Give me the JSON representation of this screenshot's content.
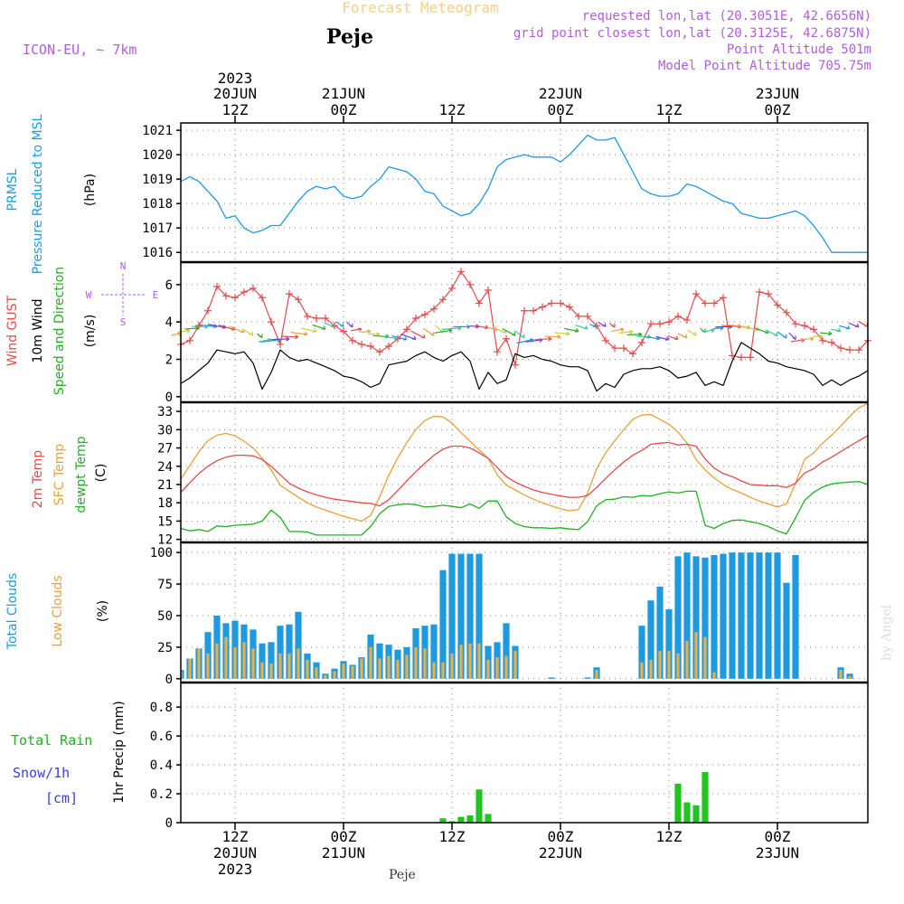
{
  "header": {
    "super_title": "Forecast Meteogram",
    "location": "Peje",
    "model": "ICON-EU, ~ 7km",
    "requested": "requested lon,lat (20.3051E, 42.6656N)",
    "grid_point": "grid point closest lon,lat (20.3125E, 42.6875N)",
    "point_alt": "Point Altitude 501m",
    "model_alt": "Model Point Altitude 705.75m",
    "footer_location": "Peje",
    "watermark": "by Angel"
  },
  "time_axis": {
    "top": [
      {
        "line1": "2023",
        "line2": "20JUN",
        "line3": "12Z",
        "h": 12
      },
      {
        "line1": "",
        "line2": "21JUN",
        "line3": "00Z",
        "h": 24
      },
      {
        "line1": "",
        "line2": "",
        "line3": "12Z",
        "h": 36
      },
      {
        "line1": "",
        "line2": "22JUN",
        "line3": "00Z",
        "h": 48
      },
      {
        "line1": "",
        "line2": "",
        "line3": "12Z",
        "h": 60
      },
      {
        "line1": "",
        "line2": "23JUN",
        "line3": "00Z",
        "h": 72
      }
    ],
    "bottom": [
      {
        "line1": "12Z",
        "line2": "20JUN",
        "line3": "2023",
        "h": 12
      },
      {
        "line1": "00Z",
        "line2": "21JUN",
        "line3": "",
        "h": 24
      },
      {
        "line1": "12Z",
        "line2": "",
        "line3": "",
        "h": 36
      },
      {
        "line1": "00Z",
        "line2": "22JUN",
        "line3": "",
        "h": 48
      },
      {
        "line1": "12Z",
        "line2": "",
        "line3": "",
        "h": 60
      },
      {
        "line1": "00Z",
        "line2": "23JUN",
        "line3": "",
        "h": 72
      }
    ],
    "x_start_hour": 6,
    "x_end_hour": 82
  },
  "chart_data": [
    {
      "type": "line",
      "name": "pressure",
      "title_lines": [
        "PRMSL",
        "Pressure Reduced to MSL"
      ],
      "ylabel": "(hPa)",
      "ylim": [
        1015.6,
        1021.3
      ],
      "yticks": [
        1016,
        1017,
        1018,
        1019,
        1020,
        1021
      ],
      "x_hours": [
        6,
        7,
        8,
        9,
        10,
        11,
        12,
        13,
        14,
        15,
        16,
        17,
        18,
        19,
        20,
        21,
        22,
        23,
        24,
        25,
        26,
        27,
        28,
        29,
        30,
        31,
        32,
        33,
        34,
        35,
        36,
        37,
        38,
        39,
        40,
        41,
        42,
        43,
        44,
        45,
        46,
        47,
        48,
        49,
        50,
        51,
        52,
        53,
        54,
        55,
        56,
        57,
        58,
        59,
        60,
        61,
        62,
        63,
        64,
        65,
        66,
        67,
        68,
        69,
        70,
        71,
        72,
        73,
        74,
        75,
        76,
        77,
        78,
        79,
        80,
        81,
        82
      ],
      "values": [
        1018.9,
        1019.1,
        1018.9,
        1018.5,
        1018.1,
        1017.4,
        1017.5,
        1017.0,
        1016.8,
        1016.9,
        1017.1,
        1017.1,
        1017.6,
        1018.1,
        1018.5,
        1018.7,
        1018.6,
        1018.7,
        1018.3,
        1018.2,
        1018.3,
        1018.7,
        1019.0,
        1019.5,
        1019.4,
        1019.3,
        1019.0,
        1018.5,
        1018.4,
        1017.9,
        1017.7,
        1017.5,
        1017.6,
        1018.0,
        1018.6,
        1019.5,
        1019.8,
        1019.9,
        1020.0,
        1019.9,
        1019.9,
        1019.9,
        1019.7,
        1020.0,
        1020.4,
        1020.8,
        1020.6,
        1020.6,
        1020.7,
        1020.0,
        1019.3,
        1018.6,
        1018.4,
        1018.3,
        1018.3,
        1018.4,
        1018.8,
        1018.7,
        1018.5,
        1018.3,
        1018.1,
        1018.0,
        1017.6,
        1017.5,
        1017.4,
        1017.4,
        1017.5,
        1017.6,
        1017.7,
        1017.5,
        1017.1,
        1016.6,
        1016.0,
        1016.0,
        1016.0,
        1016.0,
        1016.0
      ]
    },
    {
      "type": "line",
      "name": "wind",
      "title_lines": [
        "Wind GUST",
        "10m Wind",
        "Speed and Direction"
      ],
      "ylabel": "(m/s)",
      "compass": [
        "N",
        "W",
        "E",
        "S"
      ],
      "ylim": [
        -0.3,
        7.2
      ],
      "yticks": [
        0,
        2,
        4,
        6
      ],
      "x_hours": [
        6,
        7,
        8,
        9,
        10,
        11,
        12,
        13,
        14,
        15,
        16,
        17,
        18,
        19,
        20,
        21,
        22,
        23,
        24,
        25,
        26,
        27,
        28,
        29,
        30,
        31,
        32,
        33,
        34,
        35,
        36,
        37,
        38,
        39,
        40,
        41,
        42,
        43,
        44,
        45,
        46,
        47,
        48,
        49,
        50,
        51,
        52,
        53,
        54,
        55,
        56,
        57,
        58,
        59,
        60,
        61,
        62,
        63,
        64,
        65,
        66,
        67,
        68,
        69,
        70,
        71,
        72,
        73,
        74,
        75,
        76,
        77,
        78,
        79,
        80,
        81,
        82
      ],
      "gust": [
        2.8,
        3.0,
        3.8,
        4.6,
        5.9,
        5.4,
        5.3,
        5.6,
        5.8,
        5.3,
        4.0,
        2.8,
        5.5,
        5.2,
        4.3,
        4.2,
        4.2,
        3.8,
        3.5,
        3.0,
        2.8,
        2.7,
        2.4,
        2.7,
        3.1,
        3.6,
        4.2,
        4.4,
        4.7,
        5.2,
        5.8,
        6.7,
        6.0,
        5.0,
        5.7,
        2.4,
        3.1,
        1.7,
        4.6,
        4.6,
        4.8,
        5.0,
        5.0,
        4.8,
        4.3,
        4.3,
        3.8,
        3.0,
        2.6,
        2.6,
        2.3,
        2.9,
        3.9,
        3.9,
        4.0,
        4.3,
        4.1,
        5.5,
        5.0,
        5.0,
        5.3,
        2.2,
        2.1,
        2.1,
        5.6,
        5.5,
        4.9,
        4.5,
        3.9,
        3.8,
        3.6,
        3.0,
        2.9,
        2.6,
        2.5,
        2.5,
        3.0
      ],
      "speed": [
        0.7,
        1.0,
        1.4,
        1.8,
        2.5,
        2.4,
        2.3,
        2.4,
        1.8,
        0.4,
        1.3,
        2.5,
        2.1,
        1.9,
        2.0,
        1.8,
        1.6,
        1.4,
        1.1,
        1.0,
        0.8,
        0.5,
        0.7,
        1.7,
        1.8,
        1.9,
        2.2,
        2.4,
        2.1,
        1.9,
        2.2,
        2.4,
        1.9,
        0.4,
        1.3,
        0.7,
        0.9,
        2.3,
        2.1,
        2.2,
        2.0,
        1.9,
        1.7,
        1.6,
        1.6,
        1.4,
        0.3,
        0.7,
        0.5,
        1.2,
        1.4,
        1.5,
        1.5,
        1.6,
        1.4,
        1.0,
        1.1,
        1.3,
        0.6,
        0.8,
        0.6,
        1.9,
        2.9,
        2.6,
        2.3,
        1.9,
        1.8,
        1.6,
        1.5,
        1.4,
        1.2,
        0.6,
        0.9,
        0.6,
        0.9,
        1.1,
        1.4
      ]
    },
    {
      "type": "line",
      "name": "temperature",
      "title_lines": [
        "2m Temp",
        "SFC Temp",
        "dewpt Temp"
      ],
      "ylabel": "(C)",
      "ylim": [
        11.5,
        34.5
      ],
      "yticks": [
        12,
        15,
        18,
        21,
        24,
        27,
        30,
        33
      ],
      "x_hours": [
        6,
        7,
        8,
        9,
        10,
        11,
        12,
        13,
        14,
        15,
        16,
        17,
        18,
        19,
        20,
        21,
        22,
        23,
        24,
        25,
        26,
        27,
        28,
        29,
        30,
        31,
        32,
        33,
        34,
        35,
        36,
        37,
        38,
        39,
        40,
        41,
        42,
        43,
        44,
        45,
        46,
        47,
        48,
        49,
        50,
        51,
        52,
        53,
        54,
        55,
        56,
        57,
        58,
        59,
        60,
        61,
        62,
        63,
        64,
        65,
        66,
        67,
        68,
        69,
        70,
        71,
        72,
        73,
        74,
        75,
        76,
        77,
        78,
        79,
        80,
        81,
        82
      ],
      "t2m": [
        19.7,
        21.3,
        22.8,
        24.0,
        24.9,
        25.5,
        25.8,
        25.8,
        25.7,
        25.1,
        24.0,
        22.6,
        21.2,
        20.4,
        19.8,
        19.3,
        18.9,
        18.6,
        18.4,
        18.2,
        18.0,
        17.9,
        17.5,
        18.5,
        20.0,
        21.6,
        23.1,
        24.5,
        25.8,
        26.8,
        27.3,
        27.3,
        27.0,
        26.2,
        25.3,
        23.8,
        22.3,
        21.4,
        20.7,
        20.1,
        19.7,
        19.4,
        19.1,
        18.9,
        18.9,
        19.2,
        20.5,
        22.0,
        23.4,
        24.7,
        25.8,
        26.6,
        27.6,
        27.8,
        27.9,
        27.5,
        27.6,
        27.3,
        25.2,
        23.7,
        22.8,
        22.3,
        21.6,
        21.0,
        20.9,
        20.8,
        20.8,
        20.5,
        21.2,
        22.9,
        23.6,
        24.7,
        25.5,
        26.4,
        27.3,
        28.2,
        29.0
      ],
      "sfc": [
        21.9,
        24.1,
        26.4,
        28.2,
        29.1,
        29.4,
        29.0,
        28.1,
        27.0,
        25.3,
        23.4,
        20.9,
        19.9,
        18.9,
        18.0,
        17.3,
        16.8,
        16.3,
        15.8,
        15.4,
        15.0,
        15.9,
        19.0,
        22.5,
        25.4,
        27.9,
        30.0,
        31.5,
        32.2,
        32.1,
        31.1,
        29.5,
        28.1,
        26.7,
        25.3,
        22.6,
        20.9,
        20.1,
        19.3,
        18.6,
        18.0,
        17.5,
        17.0,
        16.7,
        16.9,
        19.6,
        23.6,
        26.2,
        28.2,
        30.0,
        31.7,
        32.4,
        32.5,
        31.7,
        30.9,
        29.6,
        27.8,
        25.1,
        23.4,
        22.1,
        21.0,
        20.2,
        19.6,
        18.9,
        18.3,
        17.8,
        17.3,
        17.8,
        21.2,
        25.1,
        26.2,
        27.8,
        29.1,
        30.6,
        32.2,
        33.6,
        34.3
      ],
      "dewpt": [
        13.8,
        13.4,
        13.6,
        13.3,
        14.2,
        14.1,
        14.3,
        14.4,
        14.5,
        15.0,
        16.8,
        15.6,
        13.3,
        13.3,
        13.2,
        12.7,
        12.7,
        12.7,
        12.7,
        12.7,
        12.7,
        14.1,
        16.2,
        17.4,
        17.7,
        17.8,
        17.7,
        17.3,
        17.4,
        17.6,
        17.4,
        17.2,
        17.8,
        17.1,
        18.3,
        18.3,
        15.7,
        14.6,
        14.1,
        13.9,
        13.9,
        13.8,
        13.9,
        13.7,
        13.6,
        14.9,
        17.5,
        18.5,
        18.6,
        19.0,
        18.9,
        19.2,
        19.1,
        19.5,
        19.8,
        19.6,
        19.9,
        19.9,
        14.3,
        13.8,
        14.6,
        15.1,
        15.2,
        14.9,
        14.6,
        14.1,
        13.4,
        12.9,
        15.5,
        18.4,
        19.7,
        20.6,
        21.1,
        21.3,
        21.4,
        21.5,
        21.0
      ]
    },
    {
      "type": "bar",
      "name": "clouds",
      "title_lines": [
        "Total Clouds",
        "Low Clouds"
      ],
      "ylabel": "(%)",
      "ylim": [
        -3,
        108
      ],
      "yticks": [
        0,
        25,
        50,
        75,
        100
      ],
      "x_hours": [
        6,
        7,
        8,
        9,
        10,
        11,
        12,
        13,
        14,
        15,
        16,
        17,
        18,
        19,
        20,
        21,
        22,
        23,
        24,
        25,
        26,
        27,
        28,
        29,
        30,
        31,
        32,
        33,
        34,
        35,
        36,
        37,
        38,
        39,
        40,
        41,
        42,
        43,
        44,
        45,
        46,
        47,
        48,
        49,
        50,
        51,
        52,
        53,
        54,
        55,
        56,
        57,
        58,
        59,
        60,
        61,
        62,
        63,
        64,
        65,
        66,
        67,
        68,
        69,
        70,
        71,
        72,
        73,
        74,
        75,
        76,
        77,
        78,
        79,
        80,
        81,
        82
      ],
      "total": [
        7,
        16,
        24,
        37,
        50,
        44,
        46,
        43,
        39,
        28,
        29,
        42,
        43,
        53,
        20,
        13,
        4,
        8,
        14,
        11,
        17,
        35,
        28,
        27,
        23,
        25,
        40,
        42,
        43,
        86,
        99,
        99,
        99,
        99,
        26,
        29,
        44,
        26,
        0,
        0,
        0,
        1,
        0,
        0,
        0,
        1,
        9,
        0,
        0,
        0,
        0,
        42,
        62,
        73,
        55,
        97,
        100,
        97,
        96,
        98,
        99,
        100,
        100,
        100,
        100,
        100,
        100,
        76,
        98,
        0,
        0,
        0,
        0,
        9,
        4,
        0,
        0
      ],
      "low": [
        6,
        16,
        24,
        20,
        28,
        33,
        25,
        29,
        24,
        13,
        12,
        20,
        20,
        24,
        15,
        9,
        3,
        6,
        12,
        10,
        16,
        25,
        16,
        18,
        15,
        19,
        25,
        24,
        13,
        13,
        20,
        27,
        28,
        28,
        15,
        17,
        18,
        22,
        0,
        0,
        0,
        0,
        0,
        0,
        0,
        0,
        7,
        0,
        0,
        0,
        0,
        13,
        15,
        22,
        22,
        20,
        30,
        37,
        33,
        5,
        0,
        0,
        0,
        0,
        0,
        0,
        0,
        0,
        0,
        0,
        0,
        0,
        0,
        7,
        2,
        0,
        0
      ]
    },
    {
      "type": "bar",
      "name": "precip",
      "title_lines": [
        "Total  Rain",
        "Snow/1h",
        "[cm]"
      ],
      "ylabel": "1hr Precip (mm)",
      "ylim": [
        0,
        0.97
      ],
      "yticks": [
        0,
        0.2,
        0.4,
        0.6,
        0.8
      ],
      "tick_labels": [
        "0",
        "0.2",
        "0.4",
        "0.6",
        "0.8"
      ],
      "x_hours": [
        6,
        7,
        8,
        9,
        10,
        11,
        12,
        13,
        14,
        15,
        16,
        17,
        18,
        19,
        20,
        21,
        22,
        23,
        24,
        25,
        26,
        27,
        28,
        29,
        30,
        31,
        32,
        33,
        34,
        35,
        36,
        37,
        38,
        39,
        40,
        41,
        42,
        43,
        44,
        45,
        46,
        47,
        48,
        49,
        50,
        51,
        52,
        53,
        54,
        55,
        56,
        57,
        58,
        59,
        60,
        61,
        62,
        63,
        64,
        65,
        66,
        67,
        68,
        69,
        70,
        71,
        72,
        73,
        74,
        75,
        76,
        77,
        78,
        79,
        80,
        81,
        82
      ],
      "rain": [
        0,
        0,
        0,
        0,
        0,
        0,
        0,
        0,
        0,
        0,
        0,
        0,
        0,
        0,
        0,
        0,
        0,
        0,
        0,
        0,
        0,
        0,
        0,
        0,
        0,
        0,
        0,
        0,
        0,
        0.03,
        0.01,
        0.04,
        0.05,
        0.23,
        0.06,
        0,
        0,
        0,
        0,
        0,
        0,
        0,
        0,
        0,
        0,
        0,
        0,
        0,
        0,
        0,
        0,
        0,
        0,
        0,
        0,
        0.27,
        0.14,
        0.12,
        0.35,
        0,
        0,
        0,
        0,
        0,
        0,
        0,
        0,
        0,
        0,
        0,
        0,
        0,
        0,
        0,
        0,
        0,
        0
      ]
    }
  ]
}
